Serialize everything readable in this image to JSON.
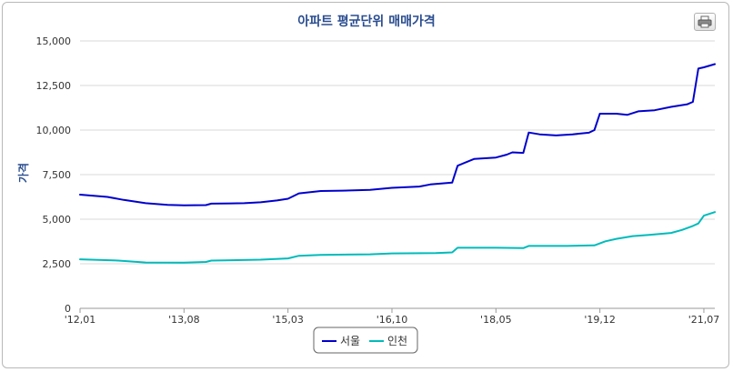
{
  "chart_data": {
    "type": "line",
    "title": "아파트 평균단위 매매가격",
    "ylabel": "가격",
    "xlabel": "",
    "ylim": [
      0,
      15000
    ],
    "yticks": [
      0,
      2500,
      5000,
      7500,
      10000,
      12500,
      15000
    ],
    "ytick_labels": [
      "0",
      "2,500",
      "5,000",
      "7,500",
      "10,000",
      "12,500",
      "15,000"
    ],
    "x_start": "2012-01",
    "x_end": "2021-09",
    "xtick_labels": [
      {
        "label": "'12,01",
        "date": "2012-01"
      },
      {
        "label": "'13,08",
        "date": "2013-08"
      },
      {
        "label": "'15,03",
        "date": "2015-03"
      },
      {
        "label": "'16,10",
        "date": "2016-10"
      },
      {
        "label": "'18,05",
        "date": "2018-05"
      },
      {
        "label": "'19,12",
        "date": "2019-12"
      },
      {
        "label": "'21,07",
        "date": "2021-07"
      }
    ],
    "grid": true,
    "legend_position": "bottom-center",
    "series": [
      {
        "name": "서울",
        "color": "#0000cc",
        "points": [
          [
            "2012-01",
            6380
          ],
          [
            "2012-06",
            6250
          ],
          [
            "2012-09",
            6080
          ],
          [
            "2013-01",
            5900
          ],
          [
            "2013-05",
            5800
          ],
          [
            "2013-08",
            5780
          ],
          [
            "2013-12",
            5790
          ],
          [
            "2014-01",
            5870
          ],
          [
            "2014-07",
            5900
          ],
          [
            "2014-10",
            5950
          ],
          [
            "2015-01",
            6050
          ],
          [
            "2015-03",
            6150
          ],
          [
            "2015-05",
            6450
          ],
          [
            "2015-09",
            6580
          ],
          [
            "2016-01",
            6600
          ],
          [
            "2016-06",
            6650
          ],
          [
            "2016-10",
            6760
          ],
          [
            "2017-03",
            6830
          ],
          [
            "2017-05",
            6950
          ],
          [
            "2017-07",
            7000
          ],
          [
            "2017-09",
            7050
          ],
          [
            "2017-10",
            8000
          ],
          [
            "2018-01",
            8380
          ],
          [
            "2018-05",
            8460
          ],
          [
            "2018-07",
            8620
          ],
          [
            "2018-08",
            8750
          ],
          [
            "2018-10",
            8720
          ],
          [
            "2018-11",
            9860
          ],
          [
            "2019-01",
            9760
          ],
          [
            "2019-04",
            9700
          ],
          [
            "2019-07",
            9760
          ],
          [
            "2019-10",
            9850
          ],
          [
            "2019-11",
            10000
          ],
          [
            "2019-12",
            10920
          ],
          [
            "2020-03",
            10920
          ],
          [
            "2020-05",
            10850
          ],
          [
            "2020-07",
            11050
          ],
          [
            "2020-10",
            11110
          ],
          [
            "2021-01",
            11300
          ],
          [
            "2021-04",
            11450
          ],
          [
            "2021-05",
            11580
          ],
          [
            "2021-06",
            13450
          ],
          [
            "2021-07",
            13520
          ],
          [
            "2021-09",
            13700
          ]
        ]
      },
      {
        "name": "인천",
        "color": "#00bbbb",
        "points": [
          [
            "2012-01",
            2750
          ],
          [
            "2012-08",
            2680
          ],
          [
            "2013-01",
            2570
          ],
          [
            "2013-08",
            2560
          ],
          [
            "2013-12",
            2600
          ],
          [
            "2014-01",
            2680
          ],
          [
            "2014-10",
            2730
          ],
          [
            "2015-03",
            2800
          ],
          [
            "2015-05",
            2950
          ],
          [
            "2015-09",
            3000
          ],
          [
            "2016-06",
            3030
          ],
          [
            "2016-10",
            3080
          ],
          [
            "2017-06",
            3100
          ],
          [
            "2017-09",
            3140
          ],
          [
            "2017-10",
            3400
          ],
          [
            "2018-05",
            3400
          ],
          [
            "2018-10",
            3380
          ],
          [
            "2018-11",
            3500
          ],
          [
            "2019-06",
            3500
          ],
          [
            "2019-11",
            3530
          ],
          [
            "2020-01",
            3760
          ],
          [
            "2020-03",
            3900
          ],
          [
            "2020-06",
            4050
          ],
          [
            "2020-09",
            4120
          ],
          [
            "2021-01",
            4230
          ],
          [
            "2021-03",
            4400
          ],
          [
            "2021-05",
            4620
          ],
          [
            "2021-06",
            4760
          ],
          [
            "2021-07",
            5200
          ],
          [
            "2021-09",
            5400
          ]
        ]
      }
    ]
  }
}
